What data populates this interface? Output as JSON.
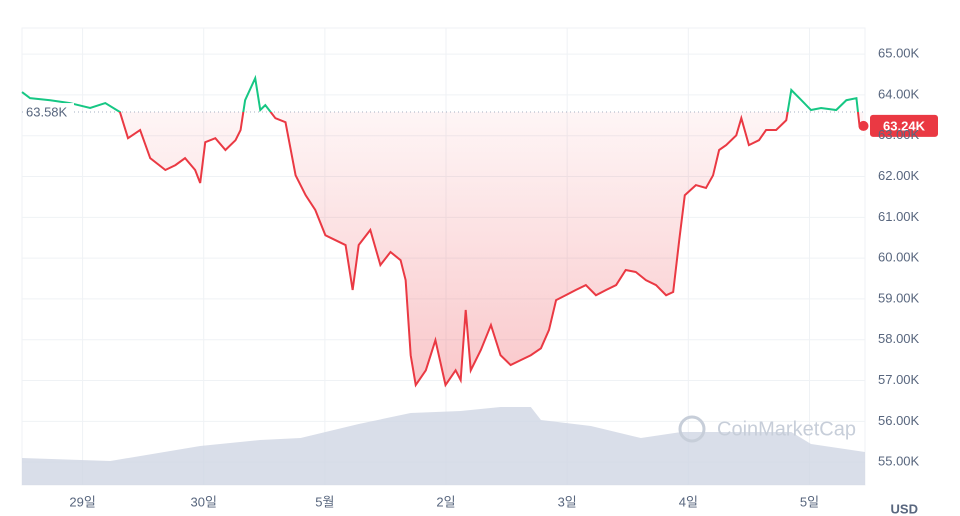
{
  "chart_data": {
    "type": "line",
    "watermark": "CoinMarketCap",
    "currency": "USD",
    "grid": true,
    "colors": {
      "above": "#16c784",
      "below": "#ea3943",
      "volume": "#cfd6e4"
    },
    "reference": {
      "value": 63.58,
      "label": "63.58K"
    },
    "current": {
      "value": 63.24,
      "label": "63.24K"
    },
    "xlim": [
      0,
      167
    ],
    "xticks": [
      {
        "value": 12,
        "label": "29일"
      },
      {
        "value": 36,
        "label": "30일"
      },
      {
        "value": 60,
        "label": "5월"
      },
      {
        "value": 84,
        "label": "2일"
      },
      {
        "value": 108,
        "label": "3일"
      },
      {
        "value": 132,
        "label": "4일"
      },
      {
        "value": 156,
        "label": "5일"
      }
    ],
    "ylim": [
      54.44,
      65.64
    ],
    "yticks": [
      {
        "value": 55,
        "label": "55.00K"
      },
      {
        "value": 56,
        "label": "56.00K"
      },
      {
        "value": 57,
        "label": "57.00K"
      },
      {
        "value": 58,
        "label": "58.00K"
      },
      {
        "value": 59,
        "label": "59.00K"
      },
      {
        "value": 60,
        "label": "60.00K"
      },
      {
        "value": 61,
        "label": "61.00K"
      },
      {
        "value": 62,
        "label": "62.00K"
      },
      {
        "value": 63,
        "label": "63.00K"
      },
      {
        "value": 64,
        "label": "64.00K"
      },
      {
        "value": 65,
        "label": "65.00K"
      }
    ],
    "x": [
      0,
      1.6,
      5.6,
      9.5,
      13.5,
      16.5,
      19.4,
      21.0,
      23.4,
      25.4,
      28.4,
      30.4,
      32.3,
      34.3,
      35.3,
      36.3,
      38.3,
      40.3,
      42.3,
      43.3,
      44.2,
      46.2,
      47.2,
      48.2,
      50.2,
      52.2,
      54.2,
      56.2,
      58.1,
      60.1,
      62.1,
      64.1,
      65.5,
      66.7,
      69.0,
      71.0,
      73.0,
      75.0,
      76.0,
      77.0,
      78.0,
      80.0,
      81.9,
      83.9,
      85.9,
      86.9,
      87.9,
      88.9,
      90.9,
      92.9,
      94.8,
      96.8,
      98.8,
      100.8,
      102.8,
      104.4,
      105.8,
      107.7,
      109.7,
      111.7,
      113.7,
      115.7,
      117.7,
      119.6,
      121.6,
      123.6,
      125.6,
      127.6,
      129.0,
      130.2,
      131.3,
      133.5,
      135.5,
      136.9,
      138.1,
      139.5,
      141.5,
      142.5,
      144.0,
      146.0,
      147.4,
      149.4,
      151.4,
      152.4,
      154.4,
      156.3,
      158.3,
      161.3,
      163.3,
      165.3,
      165.9,
      166.7
    ],
    "values": [
      64.07,
      63.92,
      63.87,
      63.8,
      63.68,
      63.8,
      63.58,
      62.94,
      63.14,
      62.45,
      62.16,
      62.28,
      62.45,
      62.16,
      61.84,
      62.84,
      62.94,
      62.65,
      62.89,
      63.14,
      63.87,
      64.41,
      63.63,
      63.75,
      63.43,
      63.33,
      62.03,
      61.54,
      61.18,
      60.56,
      60.44,
      60.32,
      59.22,
      60.32,
      60.69,
      59.83,
      60.15,
      59.95,
      59.46,
      57.62,
      56.89,
      57.25,
      57.99,
      56.89,
      57.25,
      57.01,
      58.73,
      57.25,
      57.75,
      58.36,
      57.62,
      57.38,
      57.5,
      57.62,
      57.79,
      58.24,
      58.97,
      59.09,
      59.22,
      59.34,
      59.09,
      59.22,
      59.34,
      59.71,
      59.66,
      59.46,
      59.34,
      59.09,
      59.17,
      60.44,
      61.54,
      61.79,
      61.72,
      62.03,
      62.65,
      62.77,
      63.01,
      63.43,
      62.77,
      62.89,
      63.14,
      63.14,
      63.38,
      64.12,
      63.87,
      63.63,
      63.68,
      63.63,
      63.87,
      63.92,
      63.26,
      63.24
    ],
    "volume": {
      "y2lim": [
        0,
        100
      ],
      "x": [
        0,
        17.5,
        35.3,
        47.2,
        55.2,
        66.7,
        77.0,
        86.9,
        94.8,
        100.8,
        102.8,
        112.7,
        122.6,
        130.6,
        134.5,
        152.4,
        156.3,
        167
      ],
      "values": [
        27,
        24,
        39,
        45,
        47,
        61,
        72,
        74,
        78,
        78,
        65,
        59,
        47,
        53,
        53,
        53,
        41,
        33
      ]
    }
  }
}
